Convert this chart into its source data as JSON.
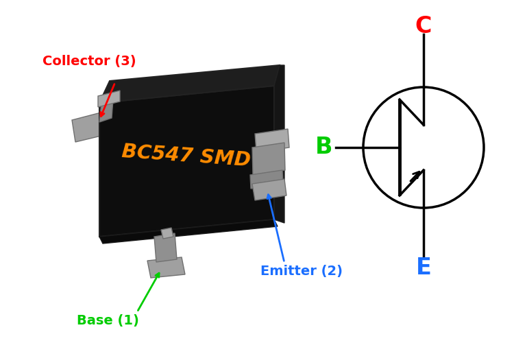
{
  "bg_color": "#ffffff",
  "chip_text": "BC547 SMD",
  "chip_text_color": "#FF8C00",
  "lead_color": "#a0a0a0",
  "lead_edge_color": "#707070",
  "collector_label": "Collector (3)",
  "collector_color": "#ff0000",
  "base_label": "Base (1)",
  "base_color": "#00cc00",
  "emitter_label": "Emitter (2)",
  "emitter_color": "#1a6eff",
  "C_label": "C",
  "B_label": "B",
  "E_label": "E",
  "C_color": "#ff0000",
  "B_color": "#00cc00",
  "E_color": "#1a6eff",
  "circle_color": "#000000",
  "line_color": "#000000",
  "figsize": [
    7.5,
    5.0
  ],
  "dpi": 100
}
